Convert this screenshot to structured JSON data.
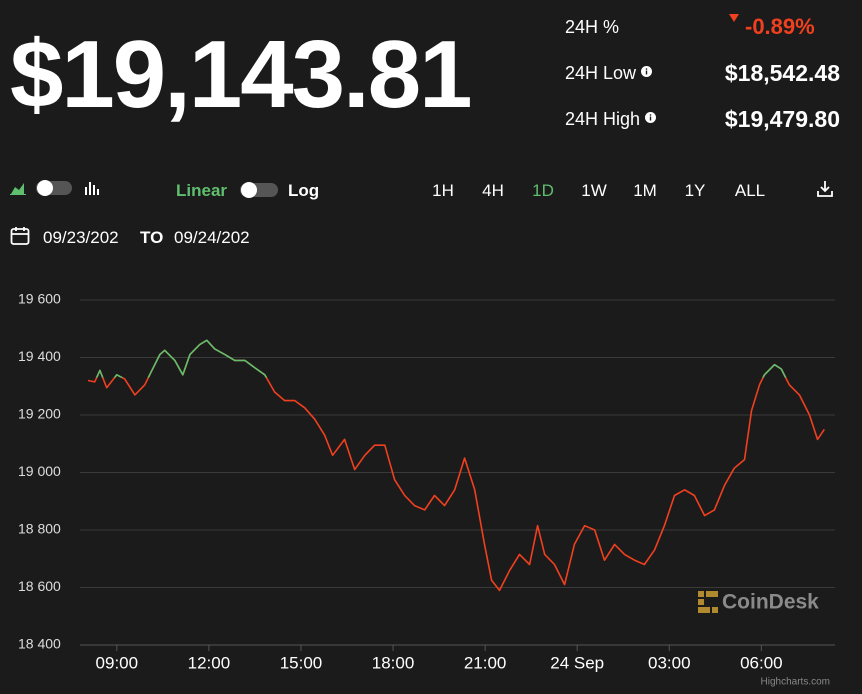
{
  "header": {
    "price": "$19,143.81",
    "change_label": "24H %",
    "change": "-0.89%",
    "low_label": "24H Low",
    "low": "$18,542.48",
    "high_label": "24H High",
    "high": "$19,479.80"
  },
  "toolbar": {
    "linear": "Linear",
    "log": "Log",
    "ranges": [
      "1H",
      "4H",
      "1D",
      "1W",
      "1M",
      "1Y",
      "ALL"
    ],
    "active_range": 2,
    "from": "09/23/202",
    "to_label": "TO",
    "to": "09/24/202"
  },
  "chart_data": {
    "type": "line",
    "x": [
      8.06,
      8.28,
      8.45,
      8.67,
      9.0,
      9.26,
      9.59,
      9.91,
      10.07,
      10.4,
      10.56,
      10.89,
      11.15,
      11.38,
      11.7,
      11.93,
      12.19,
      12.52,
      12.84,
      13.17,
      13.49,
      13.82,
      14.14,
      14.47,
      14.8,
      15.12,
      15.45,
      15.77,
      16.03,
      16.42,
      16.75,
      17.08,
      17.4,
      17.73,
      18.05,
      18.38,
      18.7,
      19.03,
      19.35,
      19.68,
      20.01,
      20.33,
      20.66,
      20.98,
      21.21,
      21.47,
      21.8,
      22.12,
      22.45,
      22.71,
      22.94,
      23.26,
      23.59,
      23.91,
      24.24,
      24.57,
      24.89,
      25.22,
      25.54,
      25.87,
      26.19,
      26.52,
      26.84,
      27.17,
      27.5,
      27.82,
      28.15,
      28.47,
      28.8,
      29.12,
      29.45,
      29.68,
      29.94,
      30.1,
      30.43,
      30.65,
      30.91,
      31.24,
      31.57,
      31.83,
      32.05
    ],
    "series": [
      {
        "color": "#f0401f",
        "values": [
          19320,
          19315,
          19355,
          19295,
          19340,
          19325,
          19270,
          19305,
          19340,
          19410,
          19425,
          19390,
          19340,
          19410,
          19445,
          19460,
          19430,
          19410,
          19390,
          19390,
          19365,
          19340,
          19280,
          19250,
          19250,
          19225,
          19185,
          19130,
          19060,
          19115,
          19010,
          19060,
          19095,
          19095,
          18975,
          18920,
          18885,
          18870,
          18920,
          18885,
          18940,
          19050,
          18940,
          18750,
          18625,
          18590,
          18660,
          18715,
          18680,
          18815,
          18715,
          18680,
          18610,
          18750,
          18815,
          18800,
          18695,
          18750,
          18715,
          18695,
          18680,
          18730,
          18815,
          18920,
          18940,
          18920,
          18850,
          18870,
          18955,
          19015,
          19045,
          19215,
          19305,
          19340,
          19375,
          19360,
          19305,
          19270,
          19200,
          19115,
          19150
        ]
      }
    ],
    "threshold": 19330,
    "threshold_color": "#5fbf6e",
    "xlim": [
      7.8,
      32.4
    ],
    "xticks": [
      {
        "value": 9,
        "label": "09:00"
      },
      {
        "value": 12,
        "label": "12:00"
      },
      {
        "value": 15,
        "label": "15:00"
      },
      {
        "value": 18,
        "label": "18:00"
      },
      {
        "value": 21,
        "label": "21:00"
      },
      {
        "value": 24,
        "label": "24 Sep"
      },
      {
        "value": 27,
        "label": "03:00"
      },
      {
        "value": 30,
        "label": "06:00"
      }
    ],
    "ylim": [
      18400,
      19600
    ],
    "yticks": [
      {
        "value": 18400,
        "label": "18 400"
      },
      {
        "value": 18600,
        "label": "18 600"
      },
      {
        "value": 18800,
        "label": "18 800"
      },
      {
        "value": 19000,
        "label": "19 000"
      },
      {
        "value": 19200,
        "label": "19 200"
      },
      {
        "value": 19400,
        "label": "19 400"
      },
      {
        "value": 19600,
        "label": "19 600"
      }
    ],
    "grid": true,
    "watermark": "CoinDesk",
    "credits": "Highcharts.com"
  }
}
